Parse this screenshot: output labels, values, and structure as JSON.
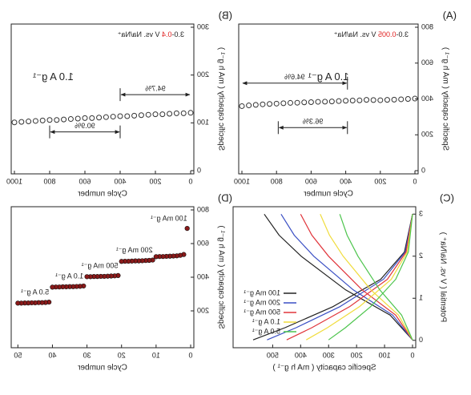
{
  "chart_data": [
    {
      "type": "scatter",
      "panel_label": "(A)",
      "voltage_window": {
        "prefix": "3.0-",
        "highlight": "0.005",
        "suffix": " V vs. Na/Na⁺"
      },
      "rate_label": "1.0 A g⁻¹",
      "retention_labels": [
        "94.6%",
        "96.3%"
      ],
      "xlabel": "Cycle number",
      "ylabel": "Specific capacity ( mA h g⁻¹ )",
      "xlim": [
        0,
        1000
      ],
      "ylim": [
        0,
        800
      ],
      "xticks": [
        0,
        200,
        400,
        600,
        800,
        1000
      ],
      "yticks": [
        0,
        200,
        400,
        600,
        800
      ],
      "filled": false,
      "series": [
        {
          "color": "#333333",
          "x": [
            0,
            40,
            80,
            120,
            160,
            200,
            240,
            280,
            320,
            360,
            400,
            440,
            480,
            520,
            560,
            600,
            640,
            680,
            720,
            760,
            800,
            840,
            880,
            920,
            960,
            1000
          ],
          "values": [
            402,
            400,
            398,
            396,
            395,
            393,
            394,
            395,
            392,
            391,
            390,
            388,
            386,
            385,
            384,
            382,
            381,
            379,
            378,
            376,
            374,
            372,
            370,
            367,
            364,
            360
          ]
        }
      ]
    },
    {
      "type": "scatter",
      "panel_label": "(B)",
      "voltage_window": {
        "prefix": "3.0-",
        "highlight": "0.4",
        "suffix": " V vs. Na/Na⁺"
      },
      "rate_label": "1.0 A g⁻¹",
      "retention_labels": [
        "94.7%",
        "90.9%"
      ],
      "xlabel": "Cycle number",
      "ylabel": "Specific capacity ( mA h g⁻¹ )",
      "xlim": [
        0,
        1000
      ],
      "ylim": [
        0,
        300
      ],
      "xticks": [
        0,
        200,
        400,
        600,
        800,
        1000
      ],
      "yticks": [
        0,
        100,
        200,
        300
      ],
      "filled": false,
      "series": [
        {
          "color": "#333333",
          "x": [
            0,
            40,
            80,
            120,
            160,
            200,
            240,
            280,
            320,
            360,
            400,
            440,
            480,
            520,
            560,
            600,
            640,
            680,
            720,
            760,
            800,
            840,
            880,
            920,
            960,
            1000
          ],
          "values": [
            121,
            120,
            120,
            119,
            118,
            118,
            117,
            116,
            115,
            114,
            114,
            113,
            112,
            111,
            110,
            110,
            109,
            108,
            107,
            106,
            106,
            105,
            104,
            103,
            102,
            101
          ]
        }
      ]
    },
    {
      "type": "line",
      "panel_label": "(C)",
      "xlabel": "Specific capacity ( mA h g⁻¹ )",
      "ylabel": "Potential ( V vs. Na/Na⁺ )",
      "xlim": [
        0,
        630
      ],
      "ylim": [
        -0.1,
        3.1
      ],
      "xticks": [
        0,
        100,
        200,
        300,
        400,
        500
      ],
      "yticks": [
        0,
        1,
        2,
        3
      ],
      "legend": "lower right",
      "series": [
        {
          "name": "100 mA g⁻¹",
          "color": "#222222",
          "x": [
            0,
            29,
            114,
            285,
            456,
            570,
            null,
            0,
            80,
            239,
            398,
            477,
            530
          ],
          "values": [
            3.0,
            2.1,
            1.45,
            0.8,
            0.3,
            0.01,
            null,
            0.01,
            0.6,
            1.2,
            2.0,
            2.5,
            3.0
          ]
        },
        {
          "name": "200 mA g⁻¹",
          "color": "#3a4fc4",
          "x": [
            0,
            26,
            104,
            260,
            416,
            520,
            null,
            0,
            71,
            212,
            353,
            423,
            470
          ],
          "values": [
            3.0,
            2.1,
            1.45,
            0.8,
            0.3,
            0.01,
            null,
            0.01,
            0.6,
            1.2,
            2.0,
            2.5,
            3.0
          ]
        },
        {
          "name": "500 mA g⁻¹",
          "color": "#e0343a",
          "x": [
            0,
            23,
            90,
            225,
            360,
            450,
            null,
            0,
            60,
            180,
            300,
            360,
            400
          ],
          "values": [
            3.0,
            2.1,
            1.45,
            0.8,
            0.3,
            0.01,
            null,
            0.01,
            0.6,
            1.2,
            2.0,
            2.5,
            3.0
          ]
        },
        {
          "name": "1.0  A g⁻¹",
          "color": "#f0dc3c",
          "x": [
            0,
            19,
            76,
            190,
            304,
            380,
            null,
            0,
            50,
            149,
            248,
            297,
            330
          ],
          "values": [
            3.0,
            2.1,
            1.45,
            0.8,
            0.3,
            0.01,
            null,
            0.01,
            0.6,
            1.2,
            2.0,
            2.5,
            3.0
          ]
        },
        {
          "name": "5.0  A g⁻¹",
          "color": "#4cc44c",
          "x": [
            0,
            15,
            60,
            150,
            240,
            300,
            null,
            0,
            39,
            117,
            195,
            234,
            260
          ],
          "values": [
            3.0,
            2.1,
            1.45,
            0.8,
            0.3,
            0.01,
            null,
            0.01,
            0.6,
            1.2,
            2.0,
            2.5,
            3.0
          ]
        }
      ]
    },
    {
      "type": "scatter",
      "panel_label": "(D)",
      "xlabel": "Cycle number",
      "ylabel": "Specific capacity ( mA h g⁻¹ )",
      "xlim": [
        0,
        51
      ],
      "ylim": [
        0,
        800
      ],
      "xticks": [
        0,
        10,
        20,
        30,
        40,
        50
      ],
      "yticks": [
        200,
        400,
        600,
        800
      ],
      "filled": true,
      "group_labels": [
        "100 mA g⁻¹",
        "200 mA g⁻¹",
        "500 mA g⁻¹",
        "1.0 A g⁻¹",
        "5.0 A g⁻¹"
      ],
      "series": [
        {
          "color": "#8b1a1a",
          "x": [
            1,
            2,
            3,
            4,
            5,
            6,
            7,
            8,
            9,
            10,
            11,
            12,
            13,
            14,
            15,
            16,
            17,
            18,
            19,
            20,
            21,
            22,
            23,
            24,
            25,
            26,
            27,
            28,
            29,
            30,
            31,
            32,
            33,
            34,
            35,
            36,
            37,
            38,
            39,
            40,
            41,
            42,
            43,
            44,
            45,
            46,
            47,
            48,
            49,
            50
          ],
          "values": [
            690,
            535,
            530,
            527,
            526,
            525,
            524,
            523,
            523,
            522,
            502,
            500,
            499,
            498,
            497,
            497,
            496,
            495,
            495,
            494,
            410,
            408,
            407,
            406,
            405,
            405,
            404,
            404,
            403,
            403,
            348,
            346,
            345,
            344,
            344,
            343,
            343,
            342,
            342,
            341,
            252,
            250,
            249,
            249,
            248,
            248,
            247,
            247,
            246,
            246
          ]
        }
      ]
    }
  ]
}
